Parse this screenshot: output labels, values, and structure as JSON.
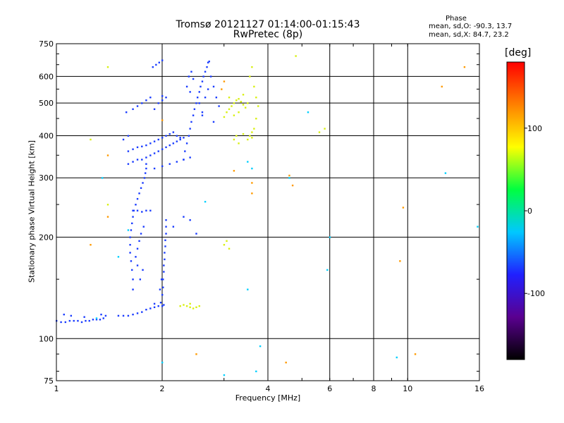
{
  "chart_data": {
    "type": "scatter",
    "title": "Tromsø 20121127 01:14:00-01:15:43",
    "subtitle": "RwPretec (8p)",
    "xlabel": "Frequency [MHz]",
    "ylabel": "Stationary phase Virtual Height [km]",
    "x_scale": "log",
    "y_scale": "log",
    "xlim": [
      1,
      16
    ],
    "ylim": [
      75,
      750
    ],
    "x_ticks": [
      1,
      2,
      4,
      6,
      8,
      10,
      16
    ],
    "y_ticks": [
      75,
      100,
      200,
      300,
      400,
      500,
      600,
      750
    ],
    "grid": true,
    "phase_stats": {
      "heading": "Phase",
      "o_line": "mean, sd,O: -90.3, 13.7",
      "x_line": "mean, sd,X:  84.7, 23.2"
    },
    "colorbar": {
      "unit": "[deg]",
      "range": [
        -180,
        180
      ],
      "ticks": [
        100,
        0,
        -100
      ],
      "colors": [
        "#000000",
        "#5a0090",
        "#2020ff",
        "#00c8ff",
        "#00ff40",
        "#ffff00",
        "#ff8000",
        "#ff0000"
      ]
    },
    "series": [
      {
        "values": [
          [
            1.0,
            113
          ],
          [
            1.03,
            112
          ],
          [
            1.06,
            112
          ],
          [
            1.09,
            113
          ],
          [
            1.12,
            113
          ],
          [
            1.15,
            113
          ],
          [
            1.18,
            112
          ],
          [
            1.21,
            113
          ],
          [
            1.24,
            113
          ],
          [
            1.27,
            114
          ],
          [
            1.3,
            114
          ],
          [
            1.33,
            114
          ],
          [
            1.36,
            115
          ],
          [
            1.05,
            118
          ],
          [
            1.1,
            117
          ],
          [
            1.2,
            116
          ],
          [
            1.34,
            118
          ],
          [
            1.38,
            117
          ],
          [
            1.5,
            117
          ],
          [
            1.55,
            117
          ],
          [
            1.6,
            117
          ],
          [
            1.65,
            118
          ],
          [
            1.7,
            119
          ],
          [
            1.75,
            120
          ],
          [
            1.8,
            122
          ],
          [
            1.85,
            123
          ],
          [
            1.9,
            124
          ],
          [
            1.95,
            125
          ],
          [
            2.0,
            125
          ],
          [
            2.02,
            126
          ],
          [
            1.9,
            127
          ],
          [
            1.98,
            128
          ],
          [
            2.0,
            135
          ],
          [
            2.01,
            142
          ],
          [
            2.01,
            150
          ],
          [
            2.02,
            158
          ],
          [
            2.02,
            165
          ],
          [
            2.03,
            172
          ],
          [
            2.03,
            180
          ],
          [
            2.04,
            188
          ],
          [
            2.04,
            196
          ],
          [
            2.05,
            205
          ],
          [
            2.05,
            215
          ],
          [
            2.05,
            225
          ],
          [
            1.97,
            140
          ],
          [
            1.99,
            150
          ],
          [
            1.65,
            140
          ],
          [
            1.65,
            150
          ],
          [
            1.64,
            160
          ],
          [
            1.63,
            170
          ],
          [
            1.62,
            180
          ],
          [
            1.62,
            190
          ],
          [
            1.62,
            200
          ],
          [
            1.63,
            210
          ],
          [
            1.64,
            220
          ],
          [
            1.65,
            230
          ],
          [
            1.66,
            240
          ],
          [
            1.68,
            250
          ],
          [
            1.7,
            260
          ],
          [
            1.72,
            270
          ],
          [
            1.74,
            280
          ],
          [
            1.76,
            290
          ],
          [
            1.78,
            300
          ],
          [
            1.79,
            310
          ],
          [
            1.8,
            320
          ],
          [
            1.8,
            330
          ],
          [
            1.68,
            175
          ],
          [
            1.7,
            185
          ],
          [
            1.72,
            195
          ],
          [
            1.74,
            205
          ],
          [
            1.77,
            215
          ],
          [
            1.76,
            160
          ],
          [
            1.73,
            150
          ],
          [
            1.7,
            165
          ],
          [
            1.65,
            240
          ],
          [
            1.7,
            240
          ],
          [
            1.75,
            238
          ],
          [
            1.8,
            240
          ],
          [
            1.85,
            240
          ],
          [
            1.6,
            330
          ],
          [
            1.65,
            335
          ],
          [
            1.7,
            340
          ],
          [
            1.75,
            340
          ],
          [
            1.8,
            345
          ],
          [
            1.85,
            350
          ],
          [
            1.9,
            355
          ],
          [
            1.95,
            360
          ],
          [
            2.0,
            365
          ],
          [
            2.05,
            370
          ],
          [
            2.1,
            375
          ],
          [
            2.15,
            380
          ],
          [
            2.2,
            385
          ],
          [
            2.25,
            390
          ],
          [
            2.3,
            395
          ],
          [
            1.6,
            360
          ],
          [
            1.65,
            365
          ],
          [
            1.7,
            370
          ],
          [
            1.75,
            372
          ],
          [
            1.8,
            375
          ],
          [
            1.85,
            380
          ],
          [
            1.9,
            385
          ],
          [
            1.95,
            390
          ],
          [
            2.0,
            395
          ],
          [
            2.05,
            400
          ],
          [
            2.1,
            405
          ],
          [
            2.15,
            410
          ],
          [
            2.2,
            400
          ],
          [
            2.25,
            395
          ],
          [
            1.9,
            320
          ],
          [
            2.0,
            325
          ],
          [
            2.1,
            330
          ],
          [
            2.2,
            335
          ],
          [
            2.3,
            340
          ],
          [
            2.4,
            345
          ],
          [
            1.55,
            390
          ],
          [
            1.6,
            400
          ],
          [
            1.58,
            470
          ],
          [
            1.65,
            480
          ],
          [
            1.7,
            490
          ],
          [
            1.75,
            500
          ],
          [
            1.8,
            510
          ],
          [
            1.85,
            520
          ],
          [
            1.9,
            480
          ],
          [
            1.95,
            500
          ],
          [
            2.0,
            510
          ],
          [
            2.0,
            525
          ],
          [
            2.05,
            520
          ],
          [
            1.88,
            640
          ],
          [
            1.92,
            650
          ],
          [
            1.96,
            660
          ],
          [
            2.0,
            670
          ],
          [
            2.3,
            340
          ],
          [
            2.32,
            360
          ],
          [
            2.35,
            380
          ],
          [
            2.38,
            400
          ],
          [
            2.4,
            420
          ],
          [
            2.42,
            440
          ],
          [
            2.45,
            460
          ],
          [
            2.47,
            480
          ],
          [
            2.5,
            500
          ],
          [
            2.52,
            520
          ],
          [
            2.55,
            540
          ],
          [
            2.57,
            560
          ],
          [
            2.6,
            580
          ],
          [
            2.62,
            600
          ],
          [
            2.65,
            620
          ],
          [
            2.68,
            640
          ],
          [
            2.7,
            660
          ],
          [
            2.72,
            665
          ],
          [
            2.38,
            600
          ],
          [
            2.42,
            620
          ],
          [
            2.45,
            590
          ],
          [
            2.35,
            560
          ],
          [
            2.4,
            540
          ],
          [
            2.55,
            500
          ],
          [
            2.6,
            470
          ],
          [
            2.65,
            520
          ],
          [
            2.7,
            550
          ],
          [
            2.75,
            600
          ],
          [
            2.8,
            560
          ],
          [
            2.85,
            520
          ],
          [
            2.9,
            490
          ],
          [
            2.3,
            230
          ],
          [
            2.4,
            225
          ],
          [
            2.15,
            215
          ],
          [
            2.5,
            205
          ],
          [
            2.6,
            460
          ],
          [
            2.8,
            440
          ]
        ]
      },
      {
        "values": [
          [
            3.05,
            470
          ],
          [
            3.1,
            480
          ],
          [
            3.15,
            490
          ],
          [
            3.2,
            500
          ],
          [
            3.25,
            510
          ],
          [
            3.3,
            515
          ],
          [
            3.35,
            505
          ],
          [
            3.4,
            495
          ],
          [
            3.45,
            485
          ],
          [
            3.5,
            500
          ],
          [
            3.2,
            460
          ],
          [
            3.3,
            470
          ],
          [
            3.1,
            520
          ],
          [
            3.4,
            530
          ],
          [
            3.0,
            455
          ],
          [
            3.55,
            400
          ],
          [
            3.6,
            410
          ],
          [
            3.65,
            420
          ],
          [
            3.5,
            390
          ],
          [
            3.3,
            380
          ],
          [
            3.2,
            390
          ],
          [
            3.25,
            400
          ],
          [
            3.4,
            405
          ],
          [
            3.6,
            395
          ],
          [
            3.7,
            450
          ],
          [
            3.75,
            490
          ],
          [
            2.25,
            125
          ],
          [
            2.3,
            126
          ],
          [
            2.35,
            125
          ],
          [
            2.4,
            124
          ],
          [
            2.45,
            123
          ],
          [
            2.5,
            124
          ],
          [
            2.55,
            125
          ],
          [
            2.4,
            127
          ],
          [
            3.0,
            190
          ],
          [
            3.05,
            195
          ],
          [
            3.1,
            185
          ],
          [
            1.4,
            640
          ],
          [
            1.25,
            390
          ],
          [
            1.4,
            250
          ],
          [
            4.8,
            690
          ],
          [
            5.6,
            410
          ],
          [
            5.8,
            420
          ],
          [
            3.6,
            640
          ],
          [
            3.55,
            600
          ],
          [
            3.65,
            560
          ],
          [
            3.7,
            520
          ]
        ]
      },
      {
        "values": [
          [
            1.4,
            350
          ],
          [
            1.4,
            230
          ],
          [
            1.25,
            190
          ],
          [
            3.2,
            315
          ],
          [
            3.6,
            290
          ],
          [
            3.6,
            270
          ],
          [
            4.6,
            305
          ],
          [
            4.7,
            285
          ],
          [
            3.0,
            580
          ],
          [
            2.95,
            550
          ],
          [
            9.7,
            245
          ],
          [
            9.5,
            170
          ],
          [
            12.5,
            560
          ],
          [
            14.5,
            640
          ],
          [
            10.5,
            90
          ],
          [
            4.5,
            85
          ],
          [
            2.0,
            445
          ],
          [
            2.5,
            90
          ]
        ]
      },
      {
        "values": [
          [
            3.5,
            335
          ],
          [
            3.6,
            320
          ],
          [
            4.6,
            300
          ],
          [
            5.2,
            470
          ],
          [
            6.0,
            200
          ],
          [
            5.9,
            160
          ],
          [
            3.5,
            140
          ],
          [
            3.8,
            95
          ],
          [
            3.7,
            80
          ],
          [
            2.0,
            85
          ],
          [
            3.0,
            78
          ],
          [
            9.3,
            88
          ],
          [
            12.8,
            310
          ],
          [
            15.8,
            215
          ],
          [
            1.35,
            300
          ],
          [
            1.6,
            210
          ],
          [
            1.5,
            175
          ],
          [
            1.3,
            115
          ],
          [
            2.65,
            255
          ]
        ]
      }
    ]
  },
  "colors": {
    "blue": "#1a3cff",
    "yellow": "#d8f010",
    "orange": "#ff9a00",
    "cyan": "#00d0ff"
  }
}
